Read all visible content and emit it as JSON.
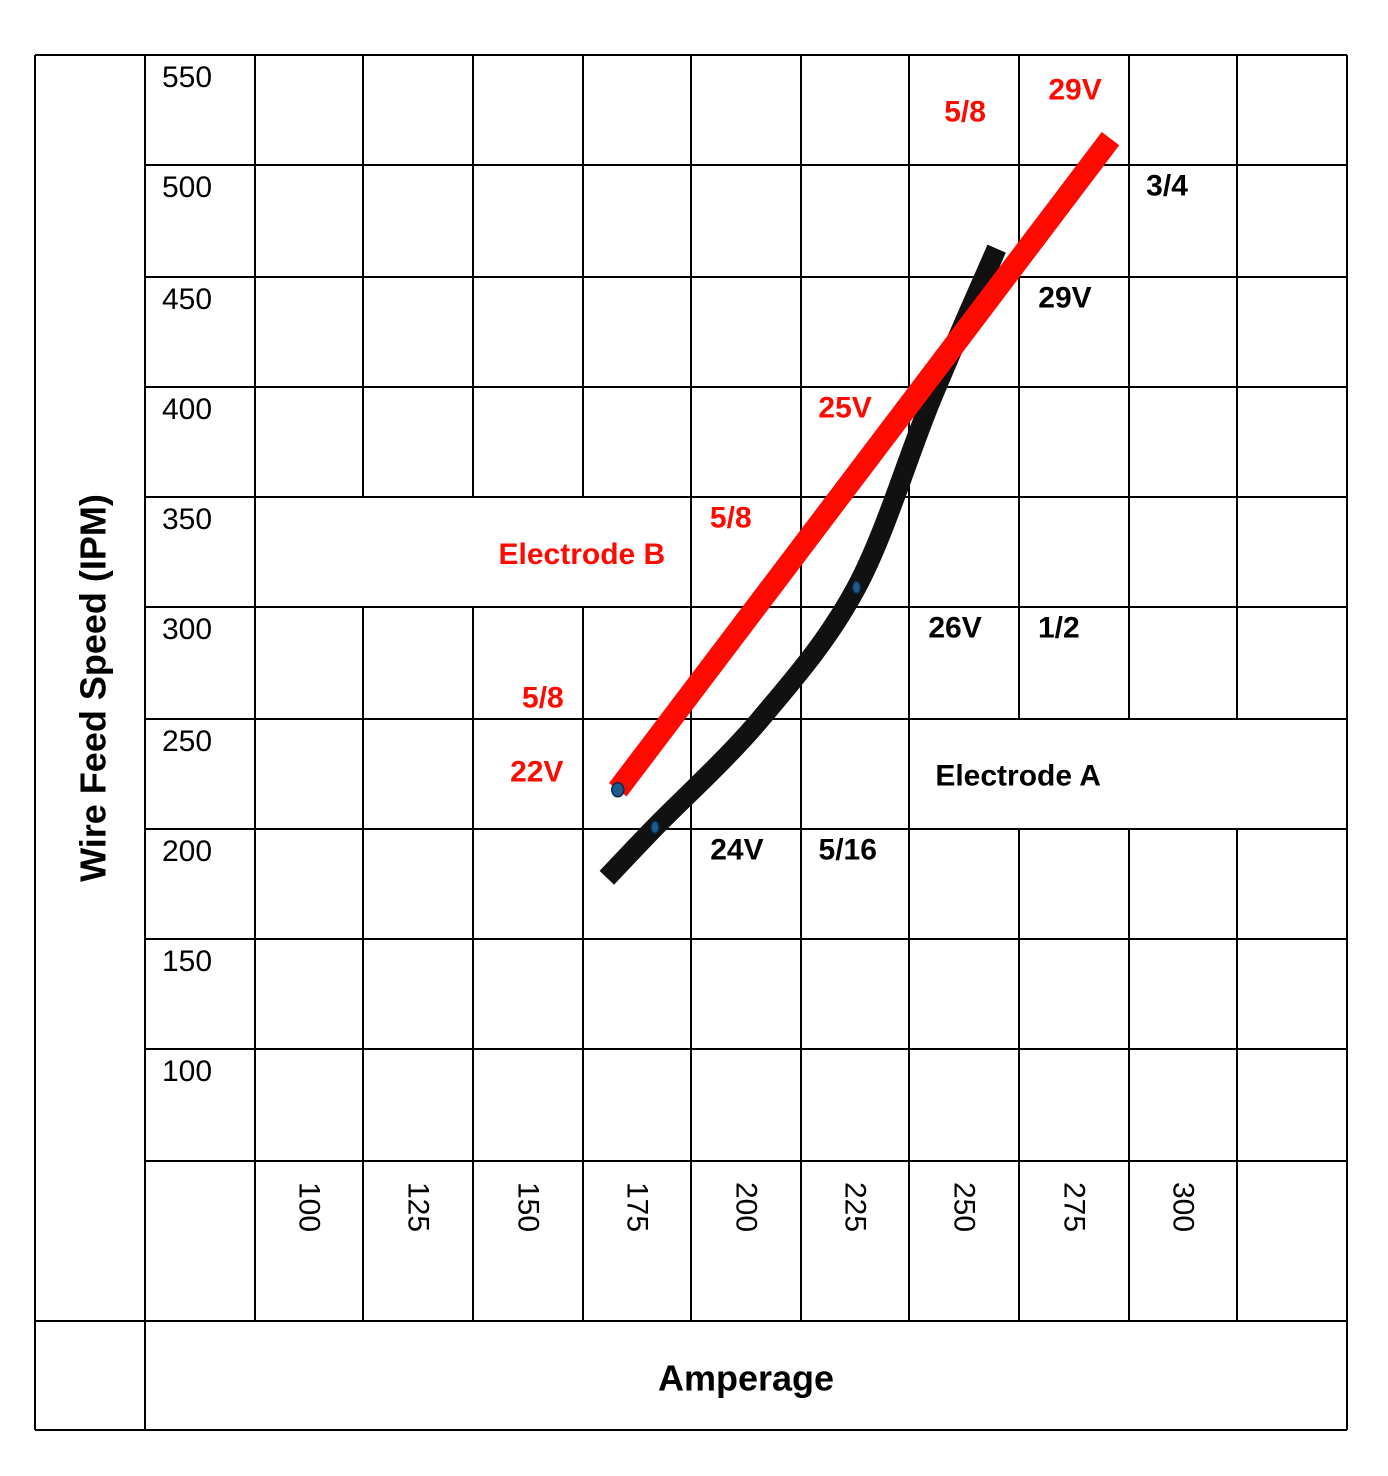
{
  "chart_data": {
    "type": "line",
    "title": "",
    "xlabel": "Amperage",
    "ylabel": "Wire Feed Speed (IPM)",
    "xlim": [
      87.5,
      312.5
    ],
    "ylim": [
      50,
      550
    ],
    "grid": true,
    "x_ticks": [
      "100",
      "125",
      "150",
      "175",
      "200",
      "225",
      "250",
      "275",
      "300"
    ],
    "y_ticks": [
      "550",
      "500",
      "450",
      "400",
      "350",
      "300",
      "250",
      "200",
      "150",
      "100"
    ],
    "series": [
      {
        "name": "Electrode A",
        "color": "#111111",
        "points": [
          [
            168,
            176
          ],
          [
            179,
            199
          ],
          [
            203,
            248
          ],
          [
            225,
            308
          ],
          [
            242,
            393
          ],
          [
            257,
            462
          ]
        ],
        "markers": [
          [
            179,
            199
          ],
          [
            225,
            308
          ]
        ]
      },
      {
        "name": "Electrode B",
        "color": "#ff0a00",
        "points": [
          [
            170.5,
            216
          ],
          [
            283,
            512
          ]
        ],
        "markers": [
          [
            170.5,
            216
          ]
        ]
      }
    ],
    "annotations": [
      {
        "text": "29V",
        "x": 274.9,
        "y": 534,
        "color": "#ff0a00"
      },
      {
        "text": "5/8",
        "x": 249.8,
        "y": 524,
        "color": "#ff0a00"
      },
      {
        "text": "25V",
        "x": 222.4,
        "y": 389.5,
        "color": "#ff0a00"
      },
      {
        "text": "5/8",
        "x": 196.3,
        "y": 339.5,
        "color": "#ff0a00"
      },
      {
        "text": "Electrode B",
        "x": 162.3,
        "y": 323,
        "color": "#ff0a00"
      },
      {
        "text": "5/8",
        "x": 153.4,
        "y": 257.7,
        "color": "#ff0a00"
      },
      {
        "text": "22V",
        "x": 152,
        "y": 224,
        "color": "#ff0a00"
      },
      {
        "text": "3/4",
        "x": 295.9,
        "y": 490.5,
        "color": "#000000"
      },
      {
        "text": "29V",
        "x": 272.6,
        "y": 439.5,
        "color": "#000000"
      },
      {
        "text": "26V",
        "x": 247.5,
        "y": 289.5,
        "color": "#000000"
      },
      {
        "text": "1/2",
        "x": 271.2,
        "y": 289.5,
        "color": "#000000"
      },
      {
        "text": "Electrode A",
        "x": 261.9,
        "y": 222.3,
        "color": "#000000"
      },
      {
        "text": "24V",
        "x": 197.7,
        "y": 188.6,
        "color": "#000000"
      },
      {
        "text": "5/16",
        "x": 223,
        "y": 188.6,
        "color": "#000000"
      }
    ]
  }
}
